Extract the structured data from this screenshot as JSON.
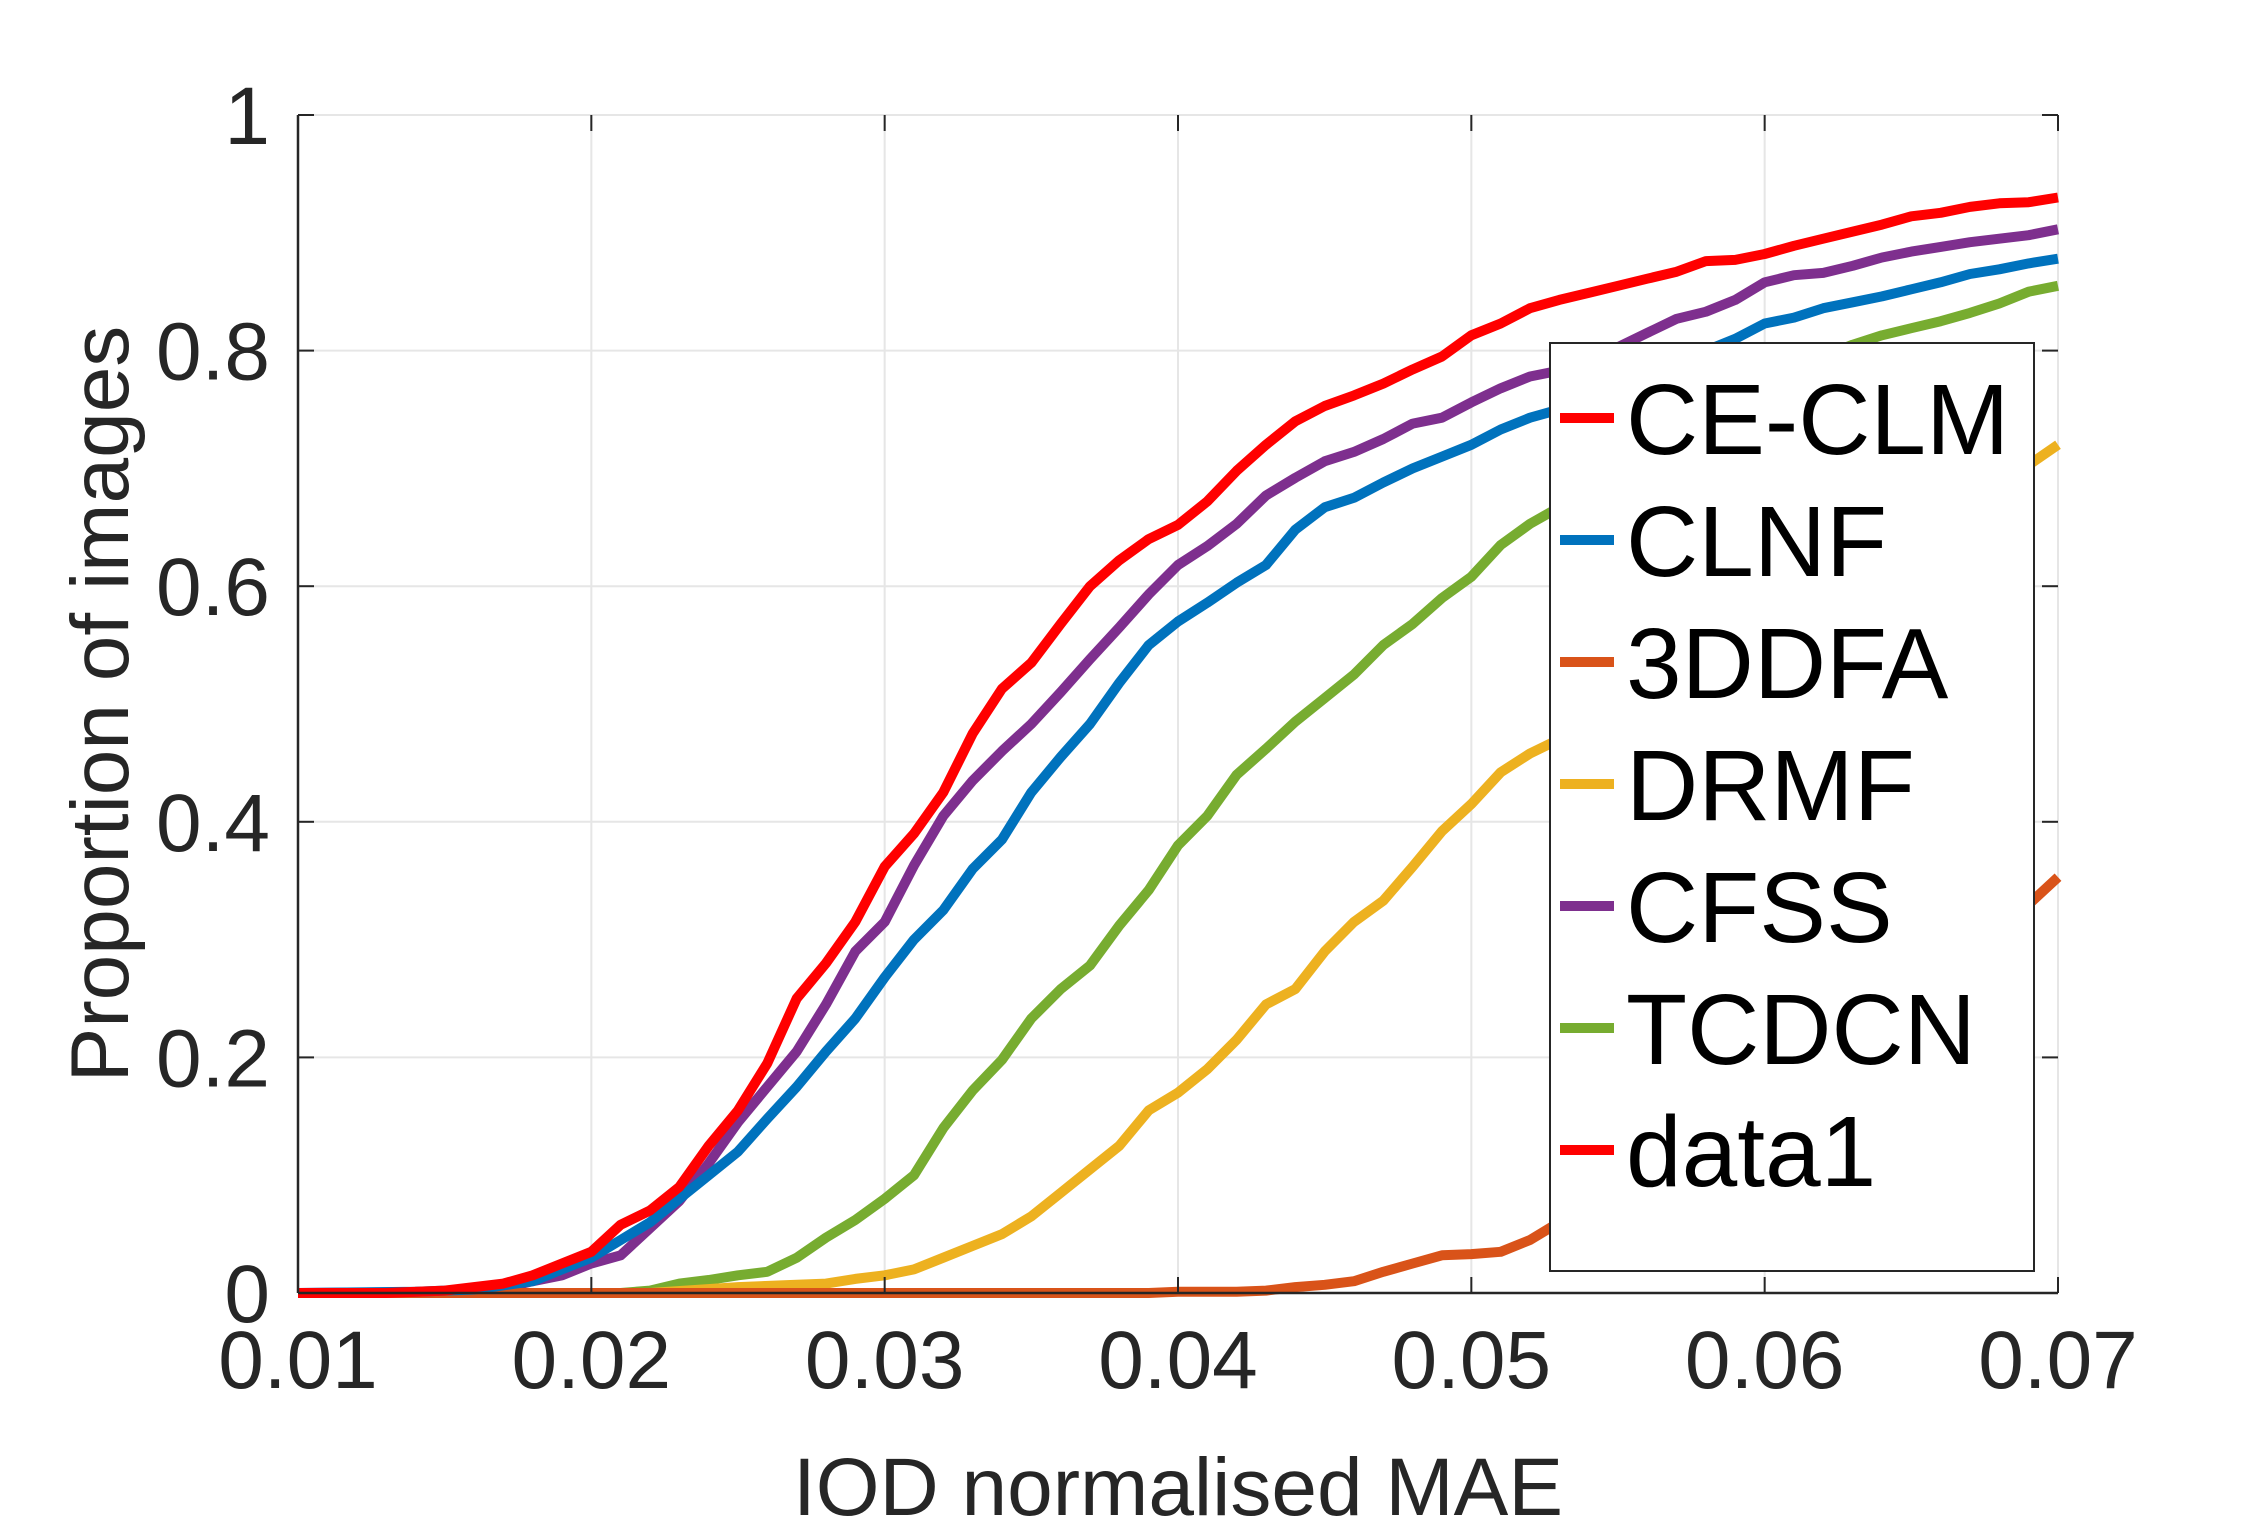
{
  "chart_data": {
    "type": "line",
    "title": "",
    "xlabel": "IOD normalised MAE",
    "ylabel": "Proportion of images",
    "xlim": [
      0.01,
      0.07
    ],
    "ylim": [
      0,
      1
    ],
    "x_ticks": [
      "0.01",
      "0.02",
      "0.03",
      "0.04",
      "0.05",
      "0.06",
      "0.07"
    ],
    "y_ticks": [
      "0",
      "0.2",
      "0.4",
      "0.6",
      "0.8",
      "1"
    ],
    "grid": true,
    "legend": "right",
    "series": [
      {
        "name": "CE-CLM",
        "color": "#ff0000",
        "points": [
          [
            0.01,
            0
          ],
          [
            0.013,
            0
          ],
          [
            0.015,
            0.002
          ],
          [
            0.016,
            0.005
          ],
          [
            0.017,
            0.008
          ],
          [
            0.018,
            0.015
          ],
          [
            0.019,
            0.025
          ],
          [
            0.02,
            0.035
          ],
          [
            0.021,
            0.058
          ],
          [
            0.022,
            0.07
          ],
          [
            0.023,
            0.09
          ],
          [
            0.024,
            0.125
          ],
          [
            0.025,
            0.155
          ],
          [
            0.026,
            0.195
          ],
          [
            0.027,
            0.25
          ],
          [
            0.028,
            0.28
          ],
          [
            0.029,
            0.315
          ],
          [
            0.03,
            0.362
          ],
          [
            0.031,
            0.39
          ],
          [
            0.032,
            0.425
          ],
          [
            0.033,
            0.475
          ],
          [
            0.034,
            0.513
          ],
          [
            0.035,
            0.535
          ],
          [
            0.036,
            0.568
          ],
          [
            0.037,
            0.6
          ],
          [
            0.038,
            0.622
          ],
          [
            0.039,
            0.64
          ],
          [
            0.04,
            0.652
          ],
          [
            0.041,
            0.672
          ],
          [
            0.042,
            0.698
          ],
          [
            0.043,
            0.72
          ],
          [
            0.044,
            0.74
          ],
          [
            0.045,
            0.753
          ],
          [
            0.046,
            0.762
          ],
          [
            0.047,
            0.772
          ],
          [
            0.048,
            0.784
          ],
          [
            0.049,
            0.795
          ],
          [
            0.05,
            0.813
          ],
          [
            0.051,
            0.823
          ],
          [
            0.052,
            0.836
          ],
          [
            0.053,
            0.843
          ],
          [
            0.054,
            0.849
          ],
          [
            0.055,
            0.855
          ],
          [
            0.056,
            0.861
          ],
          [
            0.057,
            0.867
          ],
          [
            0.058,
            0.876
          ],
          [
            0.059,
            0.877
          ],
          [
            0.06,
            0.882
          ],
          [
            0.061,
            0.889
          ],
          [
            0.062,
            0.895
          ],
          [
            0.063,
            0.901
          ],
          [
            0.064,
            0.907
          ],
          [
            0.065,
            0.914
          ],
          [
            0.066,
            0.917
          ],
          [
            0.067,
            0.922
          ],
          [
            0.068,
            0.925
          ],
          [
            0.069,
            0.926
          ],
          [
            0.07,
            0.93
          ]
        ]
      },
      {
        "name": "CLNF",
        "color": "#0072bd",
        "points": [
          [
            0.01,
            0
          ],
          [
            0.014,
            0.001
          ],
          [
            0.016,
            0.003
          ],
          [
            0.018,
            0.01
          ],
          [
            0.019,
            0.02
          ],
          [
            0.02,
            0.03
          ],
          [
            0.021,
            0.045
          ],
          [
            0.022,
            0.06
          ],
          [
            0.023,
            0.08
          ],
          [
            0.024,
            0.1
          ],
          [
            0.025,
            0.12
          ],
          [
            0.026,
            0.148
          ],
          [
            0.027,
            0.175
          ],
          [
            0.028,
            0.205
          ],
          [
            0.029,
            0.233
          ],
          [
            0.03,
            0.268
          ],
          [
            0.031,
            0.3
          ],
          [
            0.032,
            0.325
          ],
          [
            0.033,
            0.36
          ],
          [
            0.034,
            0.385
          ],
          [
            0.035,
            0.425
          ],
          [
            0.036,
            0.455
          ],
          [
            0.037,
            0.483
          ],
          [
            0.038,
            0.518
          ],
          [
            0.039,
            0.55
          ],
          [
            0.04,
            0.57
          ],
          [
            0.041,
            0.586
          ],
          [
            0.042,
            0.603
          ],
          [
            0.043,
            0.618
          ],
          [
            0.044,
            0.648
          ],
          [
            0.045,
            0.667
          ],
          [
            0.046,
            0.675
          ],
          [
            0.047,
            0.688
          ],
          [
            0.048,
            0.7
          ],
          [
            0.049,
            0.71
          ],
          [
            0.05,
            0.72
          ],
          [
            0.051,
            0.733
          ],
          [
            0.052,
            0.743
          ],
          [
            0.053,
            0.75
          ],
          [
            0.055,
            0.765
          ],
          [
            0.057,
            0.785
          ],
          [
            0.058,
            0.8
          ],
          [
            0.059,
            0.81
          ],
          [
            0.06,
            0.823
          ],
          [
            0.061,
            0.828
          ],
          [
            0.062,
            0.836
          ],
          [
            0.063,
            0.841
          ],
          [
            0.064,
            0.846
          ],
          [
            0.065,
            0.852
          ],
          [
            0.066,
            0.858
          ],
          [
            0.067,
            0.865
          ],
          [
            0.068,
            0.869
          ],
          [
            0.069,
            0.874
          ],
          [
            0.07,
            0.878
          ]
        ]
      },
      {
        "name": "3DDFA",
        "color": "#d95319",
        "points": [
          [
            0.01,
            0
          ],
          [
            0.02,
            0
          ],
          [
            0.03,
            0
          ],
          [
            0.035,
            0
          ],
          [
            0.039,
            0
          ],
          [
            0.04,
            0.001
          ],
          [
            0.042,
            0.001
          ],
          [
            0.043,
            0.002
          ],
          [
            0.044,
            0.005
          ],
          [
            0.045,
            0.007
          ],
          [
            0.046,
            0.01
          ],
          [
            0.047,
            0.018
          ],
          [
            0.048,
            0.025
          ],
          [
            0.049,
            0.032
          ],
          [
            0.05,
            0.033
          ],
          [
            0.051,
            0.035
          ],
          [
            0.052,
            0.045
          ],
          [
            0.053,
            0.06
          ],
          [
            0.055,
            0.09
          ],
          [
            0.057,
            0.13
          ],
          [
            0.059,
            0.17
          ],
          [
            0.061,
            0.2
          ],
          [
            0.063,
            0.23
          ],
          [
            0.065,
            0.26
          ],
          [
            0.067,
            0.29
          ],
          [
            0.069,
            0.33
          ],
          [
            0.07,
            0.353
          ]
        ]
      },
      {
        "name": "DRMF",
        "color": "#edb120",
        "points": [
          [
            0.01,
            0
          ],
          [
            0.022,
            0
          ],
          [
            0.025,
            0.005
          ],
          [
            0.027,
            0.007
          ],
          [
            0.028,
            0.008
          ],
          [
            0.029,
            0.012
          ],
          [
            0.03,
            0.015
          ],
          [
            0.031,
            0.02
          ],
          [
            0.032,
            0.03
          ],
          [
            0.033,
            0.04
          ],
          [
            0.034,
            0.05
          ],
          [
            0.035,
            0.065
          ],
          [
            0.036,
            0.085
          ],
          [
            0.037,
            0.105
          ],
          [
            0.038,
            0.125
          ],
          [
            0.039,
            0.155
          ],
          [
            0.04,
            0.17
          ],
          [
            0.041,
            0.19
          ],
          [
            0.042,
            0.215
          ],
          [
            0.043,
            0.245
          ],
          [
            0.044,
            0.258
          ],
          [
            0.045,
            0.29
          ],
          [
            0.046,
            0.315
          ],
          [
            0.047,
            0.333
          ],
          [
            0.048,
            0.362
          ],
          [
            0.049,
            0.392
          ],
          [
            0.05,
            0.415
          ],
          [
            0.051,
            0.442
          ],
          [
            0.052,
            0.458
          ],
          [
            0.053,
            0.47
          ],
          [
            0.055,
            0.5
          ],
          [
            0.057,
            0.54
          ],
          [
            0.059,
            0.58
          ],
          [
            0.061,
            0.615
          ],
          [
            0.063,
            0.64
          ],
          [
            0.065,
            0.66
          ],
          [
            0.067,
            0.68
          ],
          [
            0.069,
            0.703
          ],
          [
            0.07,
            0.72
          ]
        ]
      },
      {
        "name": "CFSS",
        "color": "#7e2f8e",
        "points": [
          [
            0.01,
            0
          ],
          [
            0.015,
            0.001
          ],
          [
            0.017,
            0.004
          ],
          [
            0.018,
            0.01
          ],
          [
            0.019,
            0.015
          ],
          [
            0.02,
            0.025
          ],
          [
            0.021,
            0.032
          ],
          [
            0.022,
            0.055
          ],
          [
            0.023,
            0.078
          ],
          [
            0.024,
            0.11
          ],
          [
            0.025,
            0.145
          ],
          [
            0.026,
            0.175
          ],
          [
            0.027,
            0.205
          ],
          [
            0.028,
            0.245
          ],
          [
            0.029,
            0.29
          ],
          [
            0.03,
            0.315
          ],
          [
            0.031,
            0.363
          ],
          [
            0.032,
            0.405
          ],
          [
            0.033,
            0.435
          ],
          [
            0.034,
            0.46
          ],
          [
            0.035,
            0.483
          ],
          [
            0.036,
            0.51
          ],
          [
            0.037,
            0.538
          ],
          [
            0.038,
            0.565
          ],
          [
            0.039,
            0.593
          ],
          [
            0.04,
            0.618
          ],
          [
            0.041,
            0.634
          ],
          [
            0.042,
            0.653
          ],
          [
            0.043,
            0.677
          ],
          [
            0.044,
            0.692
          ],
          [
            0.045,
            0.706
          ],
          [
            0.046,
            0.714
          ],
          [
            0.047,
            0.725
          ],
          [
            0.048,
            0.738
          ],
          [
            0.049,
            0.743
          ],
          [
            0.05,
            0.756
          ],
          [
            0.051,
            0.768
          ],
          [
            0.052,
            0.778
          ],
          [
            0.053,
            0.783
          ],
          [
            0.054,
            0.793
          ],
          [
            0.055,
            0.803
          ],
          [
            0.056,
            0.815
          ],
          [
            0.057,
            0.827
          ],
          [
            0.058,
            0.833
          ],
          [
            0.059,
            0.843
          ],
          [
            0.06,
            0.858
          ],
          [
            0.061,
            0.864
          ],
          [
            0.062,
            0.866
          ],
          [
            0.063,
            0.872
          ],
          [
            0.064,
            0.879
          ],
          [
            0.065,
            0.884
          ],
          [
            0.066,
            0.888
          ],
          [
            0.067,
            0.892
          ],
          [
            0.068,
            0.895
          ],
          [
            0.069,
            0.898
          ],
          [
            0.07,
            0.903
          ]
        ]
      },
      {
        "name": "TCDCN",
        "color": "#77ac30",
        "points": [
          [
            0.01,
            0
          ],
          [
            0.021,
            0
          ],
          [
            0.022,
            0.002
          ],
          [
            0.023,
            0.008
          ],
          [
            0.024,
            0.011
          ],
          [
            0.025,
            0.015
          ],
          [
            0.026,
            0.018
          ],
          [
            0.027,
            0.03
          ],
          [
            0.028,
            0.047
          ],
          [
            0.029,
            0.062
          ],
          [
            0.03,
            0.08
          ],
          [
            0.031,
            0.1
          ],
          [
            0.032,
            0.14
          ],
          [
            0.033,
            0.172
          ],
          [
            0.034,
            0.198
          ],
          [
            0.035,
            0.233
          ],
          [
            0.036,
            0.258
          ],
          [
            0.037,
            0.278
          ],
          [
            0.038,
            0.312
          ],
          [
            0.039,
            0.342
          ],
          [
            0.04,
            0.38
          ],
          [
            0.041,
            0.405
          ],
          [
            0.042,
            0.44
          ],
          [
            0.043,
            0.462
          ],
          [
            0.044,
            0.485
          ],
          [
            0.045,
            0.505
          ],
          [
            0.046,
            0.525
          ],
          [
            0.047,
            0.55
          ],
          [
            0.048,
            0.568
          ],
          [
            0.049,
            0.59
          ],
          [
            0.05,
            0.608
          ],
          [
            0.051,
            0.635
          ],
          [
            0.052,
            0.653
          ],
          [
            0.053,
            0.667
          ],
          [
            0.055,
            0.7
          ],
          [
            0.057,
            0.73
          ],
          [
            0.059,
            0.76
          ],
          [
            0.061,
            0.785
          ],
          [
            0.062,
            0.795
          ],
          [
            0.063,
            0.805
          ],
          [
            0.064,
            0.813
          ],
          [
            0.065,
            0.819
          ],
          [
            0.066,
            0.825
          ],
          [
            0.067,
            0.832
          ],
          [
            0.068,
            0.84
          ],
          [
            0.069,
            0.85
          ],
          [
            0.07,
            0.855
          ]
        ]
      }
    ],
    "legend_entries": [
      "CE-CLM",
      "CLNF",
      "3DDFA",
      "DRMF",
      "CFSS",
      "TCDCN",
      "data1"
    ],
    "legend_colors": [
      "#ff0000",
      "#0072bd",
      "#d95319",
      "#edb120",
      "#7e2f8e",
      "#77ac30",
      "#ff0000"
    ]
  }
}
